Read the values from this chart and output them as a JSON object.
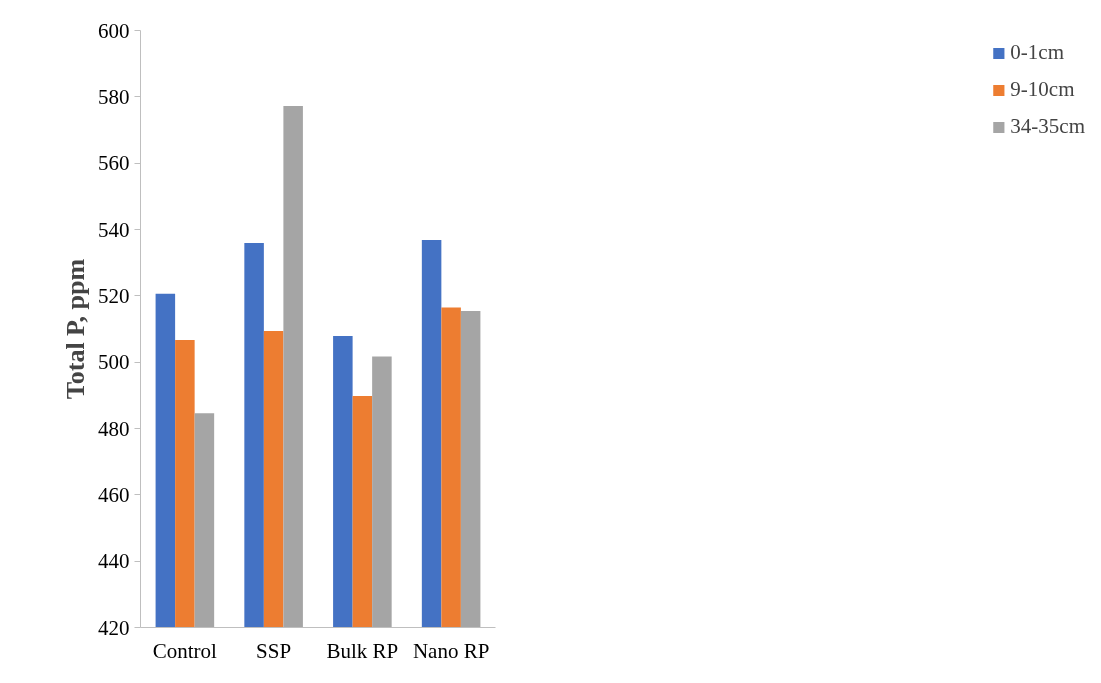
{
  "chart_data": {
    "type": "bar",
    "ylabel": "Total P, ppm",
    "categories": [
      "Control",
      "SSP",
      "Bulk RP",
      "Nano RP"
    ],
    "series": [
      {
        "name": "0-1cm",
        "color": "#4472c4",
        "values": [
          520.6,
          535.9,
          507.9,
          536.8
        ]
      },
      {
        "name": "9-10cm",
        "color": "#ed7d31",
        "values": [
          506.7,
          509.4,
          489.8,
          516.5
        ]
      },
      {
        "name": "34-35cm",
        "color": "#a5a5a5",
        "values": [
          484.6,
          577.2,
          501.7,
          515.4
        ]
      }
    ],
    "ylim": [
      420,
      600
    ],
    "yticks": [
      420,
      440,
      460,
      480,
      500,
      520,
      540,
      560,
      580,
      600
    ],
    "grid": false,
    "legend": "right"
  }
}
